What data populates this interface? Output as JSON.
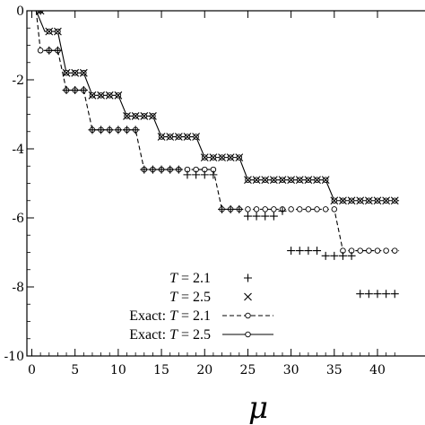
{
  "chart_data": {
    "type": "line",
    "xlabel": "μ",
    "ylabel": "",
    "xlim": [
      -1.5,
      43
    ],
    "ylim": [
      -10,
      0
    ],
    "grid": false,
    "legend_position": "bottom-center",
    "x_ticks": [
      {
        "value": 0,
        "label": "0"
      },
      {
        "value": 5,
        "label": "5"
      },
      {
        "value": 10,
        "label": "10"
      },
      {
        "value": 15,
        "label": "15"
      },
      {
        "value": 20,
        "label": "20"
      },
      {
        "value": 25,
        "label": "25"
      },
      {
        "value": 30,
        "label": "30"
      },
      {
        "value": 35,
        "label": "35"
      },
      {
        "value": 40,
        "label": "40"
      }
    ],
    "y_ticks": [
      {
        "value": 0,
        "label": "0"
      },
      {
        "value": -2,
        "label": "-2"
      },
      {
        "value": -4,
        "label": "-4"
      },
      {
        "value": -6,
        "label": "-6"
      },
      {
        "value": -8,
        "label": "-8"
      },
      {
        "value": -10,
        "label": "-10"
      }
    ],
    "series": [
      {
        "name": "T = 2.1",
        "name_parts": {
          "prefix": "",
          "var": "T",
          "rest": " = 2.1"
        },
        "marker": "plus",
        "x": [
          1,
          2,
          3,
          4,
          5,
          6,
          7,
          8,
          9,
          10,
          11,
          12,
          13,
          14,
          15,
          16,
          17,
          18,
          19,
          20,
          21,
          22,
          23,
          24,
          25,
          26,
          27,
          28,
          29,
          30,
          31,
          32,
          33,
          34,
          35,
          36,
          37,
          38,
          39,
          40,
          41,
          42
        ],
        "y": [
          0,
          -1.15,
          -1.15,
          -2.3,
          -2.3,
          -2.3,
          -3.45,
          -3.45,
          -3.45,
          -3.45,
          -3.45,
          -3.45,
          -4.6,
          -4.6,
          -4.6,
          -4.6,
          -4.6,
          -4.75,
          -4.75,
          -4.75,
          -4.75,
          -5.75,
          -5.75,
          -5.75,
          -5.95,
          -5.95,
          -5.95,
          -5.95,
          -5.8,
          -6.95,
          -6.95,
          -6.95,
          -6.95,
          -7.1,
          -7.1,
          -7.1,
          -7.1,
          -8.2,
          -8.2,
          -8.2,
          -8.2,
          -8.2
        ]
      },
      {
        "name": "T = 2.5",
        "name_parts": {
          "prefix": "",
          "var": "T",
          "rest": " = 2.5"
        },
        "marker": "cross",
        "x": [
          1,
          2,
          3,
          4,
          5,
          6,
          7,
          8,
          9,
          10,
          11,
          12,
          13,
          14,
          15,
          16,
          17,
          18,
          19,
          20,
          21,
          22,
          23,
          24,
          25,
          26,
          27,
          28,
          29,
          30,
          31,
          32,
          33,
          34,
          35,
          36,
          37,
          38,
          39,
          40,
          41,
          42
        ],
        "y": [
          0,
          -0.6,
          -0.6,
          -1.8,
          -1.8,
          -1.8,
          -2.45,
          -2.45,
          -2.45,
          -2.45,
          -3.05,
          -3.05,
          -3.05,
          -3.05,
          -3.65,
          -3.65,
          -3.65,
          -3.65,
          -3.65,
          -4.25,
          -4.25,
          -4.25,
          -4.25,
          -4.25,
          -4.9,
          -4.9,
          -4.9,
          -4.9,
          -4.9,
          -4.9,
          -4.9,
          -4.9,
          -4.9,
          -4.9,
          -5.5,
          -5.5,
          -5.5,
          -5.5,
          -5.5,
          -5.5,
          -5.5,
          -5.5
        ]
      },
      {
        "name": "Exact: T = 2.1",
        "name_parts": {
          "prefix": "Exact: ",
          "var": "T",
          "rest": " = 2.1"
        },
        "marker": "circle",
        "line": "dashed",
        "step_points": [
          [
            0.5,
            0
          ],
          [
            1,
            -1.15
          ],
          [
            3,
            -1.15
          ],
          [
            4,
            -2.3
          ],
          [
            6,
            -2.3
          ],
          [
            7,
            -3.45
          ],
          [
            12,
            -3.45
          ],
          [
            13,
            -4.6
          ],
          [
            21,
            -4.6
          ],
          [
            22,
            -5.75
          ],
          [
            35,
            -5.75
          ],
          [
            36,
            -6.95
          ],
          [
            42.5,
            -6.95
          ]
        ],
        "marker_x": [
          1,
          2,
          3,
          4,
          5,
          6,
          7,
          8,
          9,
          10,
          11,
          12,
          13,
          14,
          15,
          16,
          17,
          18,
          19,
          20,
          21,
          22,
          23,
          24,
          25,
          26,
          27,
          28,
          29,
          30,
          31,
          32,
          33,
          34,
          35,
          36,
          37,
          38,
          39,
          40,
          41,
          42
        ]
      },
      {
        "name": "Exact: T = 2.5",
        "name_parts": {
          "prefix": "Exact: ",
          "var": "T",
          "rest": " = 2.5"
        },
        "marker": "circle",
        "line": "solid",
        "step_points": [
          [
            0.5,
            0
          ],
          [
            1.5,
            -0.6
          ],
          [
            3,
            -0.6
          ],
          [
            4,
            -1.8
          ],
          [
            6,
            -1.8
          ],
          [
            7,
            -2.45
          ],
          [
            10,
            -2.45
          ],
          [
            11,
            -3.05
          ],
          [
            14,
            -3.05
          ],
          [
            15,
            -3.65
          ],
          [
            19,
            -3.65
          ],
          [
            20,
            -4.25
          ],
          [
            24,
            -4.25
          ],
          [
            25,
            -4.9
          ],
          [
            34,
            -4.9
          ],
          [
            35,
            -5.5
          ],
          [
            42.5,
            -5.5
          ]
        ],
        "marker_x": [
          1,
          2,
          3,
          4,
          5,
          6,
          7,
          8,
          9,
          10,
          11,
          12,
          13,
          14,
          15,
          16,
          17,
          18,
          19,
          20,
          21,
          22,
          23,
          24,
          25,
          26,
          27,
          28,
          29,
          30,
          31,
          32,
          33,
          34,
          35,
          36,
          37,
          38,
          39,
          40,
          41,
          42
        ]
      }
    ]
  }
}
